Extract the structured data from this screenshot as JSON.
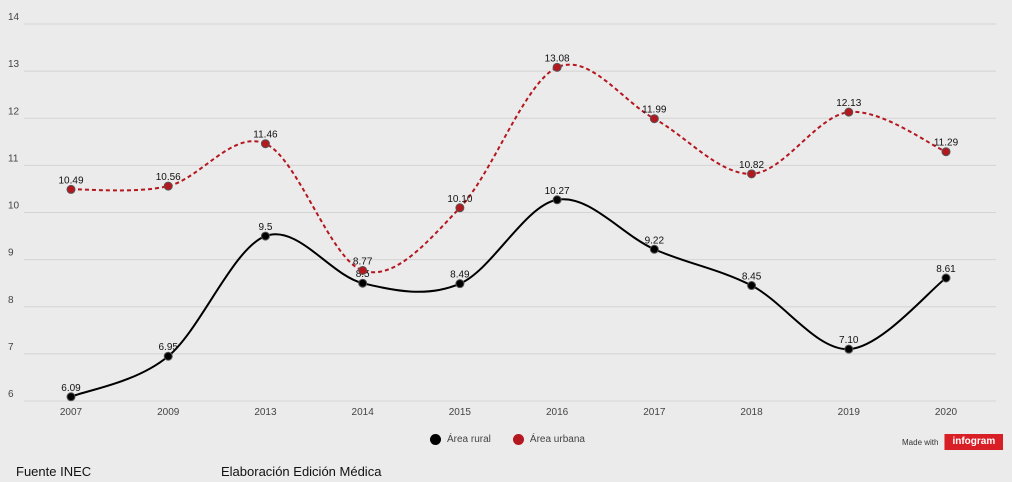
{
  "chart_data": {
    "type": "line",
    "categories": [
      "2007",
      "2009",
      "2013",
      "2014",
      "2015",
      "2016",
      "2017",
      "2018",
      "2019",
      "2020"
    ],
    "ylim": [
      6,
      14
    ],
    "yticks": [
      6,
      7,
      8,
      9,
      10,
      11,
      12,
      13,
      14
    ],
    "grid": true,
    "legend_position": "bottom",
    "series": [
      {
        "name": "Área rural",
        "color": "#000000",
        "dash": "solid",
        "values": [
          6.09,
          6.95,
          9.5,
          8.5,
          8.49,
          10.27,
          9.22,
          8.45,
          7.1,
          8.61
        ],
        "labels": [
          "6.09",
          "6.95",
          "9.5",
          "8.5",
          "8.49",
          "10.27",
          "9.22",
          "8.45",
          "7.10",
          "8.61"
        ]
      },
      {
        "name": "Área urbana",
        "color": "#b5171f",
        "dash": "dashed",
        "values": [
          10.49,
          10.56,
          11.46,
          8.77,
          10.1,
          13.08,
          11.99,
          10.82,
          12.13,
          11.29
        ],
        "labels": [
          "10.49",
          "10.56",
          "11.46",
          "8.77",
          "10.10",
          "13.08",
          "11.99",
          "10.82",
          "12.13",
          "11.29"
        ]
      }
    ]
  },
  "footer": {
    "source": "Fuente INEC",
    "credit": "Elaboración Edición Médica"
  },
  "brand": {
    "made_with": "Made with",
    "logo_text": "infogram",
    "logo_color": "#d91f26"
  }
}
